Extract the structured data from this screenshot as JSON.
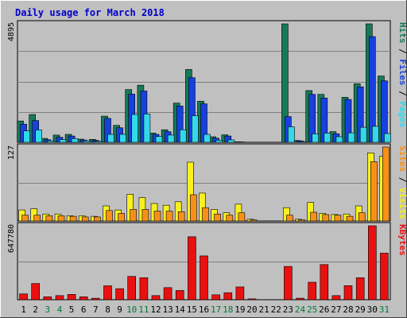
{
  "chart_data": {
    "type": "bar",
    "title": "Daily usage for March 2018",
    "categories": [
      "1",
      "2",
      "3",
      "4",
      "5",
      "6",
      "7",
      "8",
      "9",
      "10",
      "11",
      "12",
      "13",
      "14",
      "15",
      "16",
      "17",
      "18",
      "19",
      "20",
      "21",
      "22",
      "23",
      "24",
      "25",
      "26",
      "27",
      "28",
      "29",
      "30",
      "31"
    ],
    "weekend_days": [
      3,
      4,
      10,
      11,
      17,
      18,
      24,
      25,
      31
    ],
    "colors": {
      "hits": "#17785a",
      "files": "#1640e0",
      "pages": "#33d8ec",
      "visits": "#f8f020",
      "sites": "#f89018",
      "kbytes": "#ea1010",
      "title": "#0000cc",
      "weekend_label": "#007a3a",
      "weekday_label": "#000000",
      "panel_bg": "#c0c0c0",
      "grid": "#808080"
    },
    "panels": [
      {
        "axis_max_label": "4895",
        "ymax": 4895,
        "legend": [
          "Hits",
          "Files",
          "Pages"
        ],
        "legend_separator": " / ",
        "series": [
          {
            "name": "Hits",
            "key": "hits",
            "values": [
              880,
              1150,
              160,
              300,
              330,
              130,
              120,
              1080,
              700,
              2180,
              2360,
              380,
              520,
              1620,
              3010,
              1700,
              230,
              310,
              20,
              0,
              0,
              0,
              4895,
              75,
              2140,
              1980,
              440,
              1860,
              2420,
              4895,
              2740
            ]
          },
          {
            "name": "Files",
            "key": "files",
            "values": [
              750,
              900,
              110,
              210,
              260,
              100,
              80,
              990,
              600,
              1990,
              2120,
              330,
              440,
              1500,
              2670,
              1590,
              170,
              260,
              15,
              0,
              0,
              0,
              1060,
              60,
              1980,
              1830,
              350,
              1770,
              2290,
              4370,
              2540
            ]
          },
          {
            "name": "Pages",
            "key": "pages",
            "values": [
              470,
              510,
              60,
              110,
              150,
              60,
              40,
              330,
              330,
              1150,
              1170,
              240,
              300,
              520,
              1100,
              330,
              90,
              100,
              10,
              0,
              0,
              0,
              640,
              30,
              350,
              380,
              230,
              390,
              620,
              660,
              360
            ]
          }
        ]
      },
      {
        "axis_max_label": "127",
        "ymax": 127,
        "legend": [
          "Sites",
          "Visits"
        ],
        "legend_separator": " / ",
        "series": [
          {
            "name": "Visits",
            "key": "visits",
            "values": [
              19,
              21,
              12,
              12,
              9,
              9,
              8,
              26,
              19,
              46,
              40,
              30,
              27,
              33,
              101,
              48,
              20,
              14,
              29,
              3,
              0,
              0,
              23,
              3,
              32,
              13,
              11,
              12,
              26,
              117,
              111
            ]
          },
          {
            "name": "Sites",
            "key": "sites",
            "values": [
              10,
              10,
              9,
              9,
              8,
              7,
              7,
              18,
              13,
              20,
              20,
              17,
              17,
              16,
              45,
              23,
              12,
              10,
              14,
              2,
              0,
              0,
              10,
              2,
              15,
              11,
              10,
              8,
              14,
              102,
              127
            ]
          }
        ]
      },
      {
        "axis_max_label": "647780",
        "ymax": 647780,
        "legend": [
          "KBytes"
        ],
        "legend_separator": " / ",
        "series": [
          {
            "name": "KBytes",
            "key": "kbytes",
            "values": [
              51000,
              142000,
              26000,
              36000,
              47000,
              26000,
              13000,
              122000,
              97000,
              204000,
              193000,
              36000,
              106000,
              81000,
              552000,
              384000,
              43000,
              61000,
              112000,
              8000,
              0,
              0,
              292000,
              13000,
              153000,
              308000,
              36000,
              123000,
              193000,
              647780,
              408000
            ]
          }
        ]
      }
    ]
  }
}
